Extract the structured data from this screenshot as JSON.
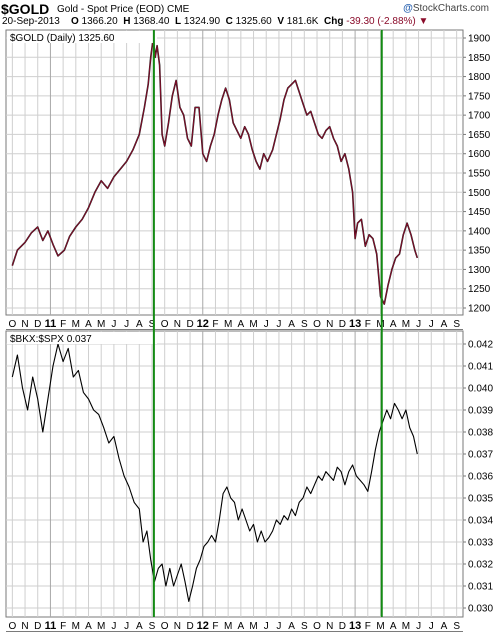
{
  "header": {
    "symbol": "$GOLD",
    "description": "Gold - Spot Price (EOD)",
    "exchange": "CME",
    "date": "20-Sep-2013",
    "open_label": "O",
    "open": "1366.20",
    "high_label": "H",
    "high": "1368.40",
    "low_label": "L",
    "low": "1324.90",
    "close_label": "C",
    "close": "1325.60",
    "volume_label": "V",
    "volume": "181.6K",
    "chg_label": "Chg",
    "chg": "-39.30 (-2.88%)",
    "chg_arrow": "▼",
    "brand": "StockCharts.com",
    "brand_mark": "@"
  },
  "colors": {
    "gold_line": "#8a0b2a",
    "bkx_line": "#000000",
    "marker": "#138a13",
    "grid": "#cfcfcf",
    "frame": "#7a7a7a"
  },
  "chart_data": [
    {
      "type": "line",
      "legend": "$GOLD (Daily) 1325.60",
      "ylim": [
        1175,
        1920
      ],
      "y_ticks": [
        1200,
        1250,
        1300,
        1350,
        1400,
        1450,
        1500,
        1550,
        1600,
        1650,
        1700,
        1750,
        1800,
        1850,
        1900
      ],
      "x_tick_labels": [
        "O",
        "N",
        "D",
        "11",
        "F",
        "M",
        "A",
        "M",
        "J",
        "J",
        "A",
        "S",
        "O",
        "N",
        "D",
        "12",
        "F",
        "M",
        "A",
        "M",
        "J",
        "J",
        "A",
        "S",
        "O",
        "N",
        "D",
        "13",
        "F",
        "M",
        "A",
        "M",
        "J",
        "J",
        "A",
        "S"
      ],
      "x_range": [
        "2010-10",
        "2013-09"
      ],
      "series": [
        {
          "values": [
            [
              0,
              1310
            ],
            [
              0.4,
              1350
            ],
            [
              1,
              1370
            ],
            [
              1.5,
              1395
            ],
            [
              2,
              1410
            ],
            [
              2.4,
              1375
            ],
            [
              2.8,
              1400
            ],
            [
              3.2,
              1365
            ],
            [
              3.6,
              1335
            ],
            [
              4.1,
              1350
            ],
            [
              4.5,
              1385
            ],
            [
              5,
              1410
            ],
            [
              5.5,
              1430
            ],
            [
              6,
              1460
            ],
            [
              6.5,
              1500
            ],
            [
              7,
              1530
            ],
            [
              7.5,
              1510
            ],
            [
              8,
              1540
            ],
            [
              8.5,
              1560
            ],
            [
              9,
              1580
            ],
            [
              9.5,
              1610
            ],
            [
              10,
              1650
            ],
            [
              10.4,
              1720
            ],
            [
              10.7,
              1780
            ],
            [
              10.9,
              1850
            ],
            [
              11.1,
              1900
            ],
            [
              11.25,
              1850
            ],
            [
              11.4,
              1880
            ],
            [
              11.6,
              1830
            ],
            [
              11.8,
              1650
            ],
            [
              12,
              1620
            ],
            [
              12.3,
              1680
            ],
            [
              12.6,
              1750
            ],
            [
              12.9,
              1790
            ],
            [
              13.2,
              1720
            ],
            [
              13.5,
              1700
            ],
            [
              13.8,
              1640
            ],
            [
              14.1,
              1620
            ],
            [
              14.4,
              1720
            ],
            [
              14.7,
              1720
            ],
            [
              15,
              1600
            ],
            [
              15.3,
              1580
            ],
            [
              15.6,
              1620
            ],
            [
              15.9,
              1650
            ],
            [
              16.2,
              1700
            ],
            [
              16.5,
              1740
            ],
            [
              16.8,
              1770
            ],
            [
              17.1,
              1740
            ],
            [
              17.4,
              1680
            ],
            [
              17.7,
              1660
            ],
            [
              18,
              1640
            ],
            [
              18.3,
              1670
            ],
            [
              18.6,
              1650
            ],
            [
              18.9,
              1610
            ],
            [
              19.2,
              1580
            ],
            [
              19.5,
              1560
            ],
            [
              19.8,
              1600
            ],
            [
              20.1,
              1580
            ],
            [
              20.5,
              1610
            ],
            [
              20.8,
              1650
            ],
            [
              21.1,
              1690
            ],
            [
              21.4,
              1740
            ],
            [
              21.7,
              1770
            ],
            [
              22,
              1780
            ],
            [
              22.3,
              1790
            ],
            [
              22.6,
              1760
            ],
            [
              22.9,
              1730
            ],
            [
              23.2,
              1700
            ],
            [
              23.5,
              1710
            ],
            [
              23.8,
              1680
            ],
            [
              24.1,
              1650
            ],
            [
              24.4,
              1640
            ],
            [
              24.7,
              1660
            ],
            [
              25,
              1670
            ],
            [
              25.3,
              1640
            ],
            [
              25.6,
              1620
            ],
            [
              25.9,
              1580
            ],
            [
              26.2,
              1600
            ],
            [
              26.5,
              1560
            ],
            [
              26.8,
              1500
            ],
            [
              27,
              1380
            ],
            [
              27.2,
              1420
            ],
            [
              27.5,
              1430
            ],
            [
              27.8,
              1360
            ],
            [
              28.1,
              1390
            ],
            [
              28.4,
              1380
            ],
            [
              28.7,
              1340
            ],
            [
              29,
              1230
            ],
            [
              29.3,
              1210
            ],
            [
              29.6,
              1260
            ],
            [
              29.9,
              1300
            ],
            [
              30.2,
              1330
            ],
            [
              30.5,
              1340
            ],
            [
              30.8,
              1390
            ],
            [
              31.1,
              1420
            ],
            [
              31.4,
              1390
            ],
            [
              31.7,
              1350
            ],
            [
              31.9,
              1330
            ]
          ]
        }
      ]
    },
    {
      "type": "line",
      "legend": "$BKX:$SPX 0.037",
      "ylim": [
        0.0296,
        0.0425
      ],
      "y_ticks": [
        0.03,
        0.031,
        0.032,
        0.033,
        0.034,
        0.035,
        0.036,
        0.037,
        0.038,
        0.039,
        0.04,
        0.041,
        0.042
      ],
      "x_tick_labels": [
        "O",
        "N",
        "D",
        "11",
        "F",
        "M",
        "A",
        "M",
        "J",
        "J",
        "A",
        "S",
        "O",
        "N",
        "D",
        "12",
        "F",
        "M",
        "A",
        "M",
        "J",
        "J",
        "A",
        "S",
        "O",
        "N",
        "D",
        "13",
        "F",
        "M",
        "A",
        "M",
        "J",
        "J",
        "A",
        "S"
      ],
      "x_range": [
        "2010-10",
        "2013-09"
      ],
      "series": [
        {
          "values": [
            [
              0,
              0.0405
            ],
            [
              0.4,
              0.0415
            ],
            [
              0.8,
              0.04
            ],
            [
              1.2,
              0.039
            ],
            [
              1.6,
              0.0405
            ],
            [
              2,
              0.0395
            ],
            [
              2.4,
              0.038
            ],
            [
              2.8,
              0.0395
            ],
            [
              3.2,
              0.041
            ],
            [
              3.6,
              0.042
            ],
            [
              4,
              0.0412
            ],
            [
              4.4,
              0.0418
            ],
            [
              4.8,
              0.0405
            ],
            [
              5.2,
              0.0408
            ],
            [
              5.6,
              0.0398
            ],
            [
              6,
              0.0395
            ],
            [
              6.4,
              0.039
            ],
            [
              6.8,
              0.0388
            ],
            [
              7.2,
              0.0382
            ],
            [
              7.6,
              0.0375
            ],
            [
              8,
              0.0378
            ],
            [
              8.4,
              0.0368
            ],
            [
              8.8,
              0.036
            ],
            [
              9.2,
              0.0355
            ],
            [
              9.6,
              0.0348
            ],
            [
              10,
              0.0345
            ],
            [
              10.3,
              0.033
            ],
            [
              10.6,
              0.0335
            ],
            [
              10.9,
              0.0322
            ],
            [
              11.2,
              0.0312
            ],
            [
              11.5,
              0.0318
            ],
            [
              11.8,
              0.032
            ],
            [
              12.1,
              0.031
            ],
            [
              12.4,
              0.0318
            ],
            [
              12.7,
              0.031
            ],
            [
              13,
              0.0315
            ],
            [
              13.3,
              0.032
            ],
            [
              13.6,
              0.0312
            ],
            [
              13.9,
              0.0303
            ],
            [
              14.2,
              0.031
            ],
            [
              14.5,
              0.0318
            ],
            [
              14.8,
              0.0322
            ],
            [
              15.1,
              0.0328
            ],
            [
              15.4,
              0.033
            ],
            [
              15.7,
              0.0333
            ],
            [
              16,
              0.033
            ],
            [
              16.3,
              0.034
            ],
            [
              16.6,
              0.0352
            ],
            [
              16.9,
              0.0355
            ],
            [
              17.2,
              0.035
            ],
            [
              17.5,
              0.0348
            ],
            [
              17.8,
              0.034
            ],
            [
              18.1,
              0.0345
            ],
            [
              18.4,
              0.034
            ],
            [
              18.7,
              0.0335
            ],
            [
              19,
              0.0338
            ],
            [
              19.3,
              0.033
            ],
            [
              19.6,
              0.0335
            ],
            [
              19.9,
              0.033
            ],
            [
              20.2,
              0.0332
            ],
            [
              20.5,
              0.0335
            ],
            [
              20.8,
              0.034
            ],
            [
              21.1,
              0.0338
            ],
            [
              21.4,
              0.0342
            ],
            [
              21.7,
              0.034
            ],
            [
              22,
              0.0345
            ],
            [
              22.3,
              0.0342
            ],
            [
              22.6,
              0.0348
            ],
            [
              22.9,
              0.035
            ],
            [
              23.2,
              0.0355
            ],
            [
              23.5,
              0.0352
            ],
            [
              23.8,
              0.0356
            ],
            [
              24.1,
              0.036
            ],
            [
              24.4,
              0.0358
            ],
            [
              24.7,
              0.0362
            ],
            [
              25,
              0.036
            ],
            [
              25.3,
              0.0358
            ],
            [
              25.6,
              0.0364
            ],
            [
              25.9,
              0.0362
            ],
            [
              26.2,
              0.0356
            ],
            [
              26.5,
              0.0362
            ],
            [
              26.8,
              0.0365
            ],
            [
              27.1,
              0.036
            ],
            [
              27.4,
              0.0358
            ],
            [
              27.7,
              0.0356
            ],
            [
              28,
              0.0353
            ],
            [
              28.3,
              0.0362
            ],
            [
              28.6,
              0.0372
            ],
            [
              28.9,
              0.038
            ],
            [
              29.2,
              0.0385
            ],
            [
              29.5,
              0.039
            ],
            [
              29.8,
              0.0386
            ],
            [
              30.1,
              0.0393
            ],
            [
              30.4,
              0.039
            ],
            [
              30.7,
              0.0386
            ],
            [
              31,
              0.039
            ],
            [
              31.3,
              0.0382
            ],
            [
              31.6,
              0.0378
            ],
            [
              31.9,
              0.037
            ]
          ]
        }
      ]
    }
  ],
  "vertical_markers_at_month_index": [
    11.15,
    29.1
  ]
}
